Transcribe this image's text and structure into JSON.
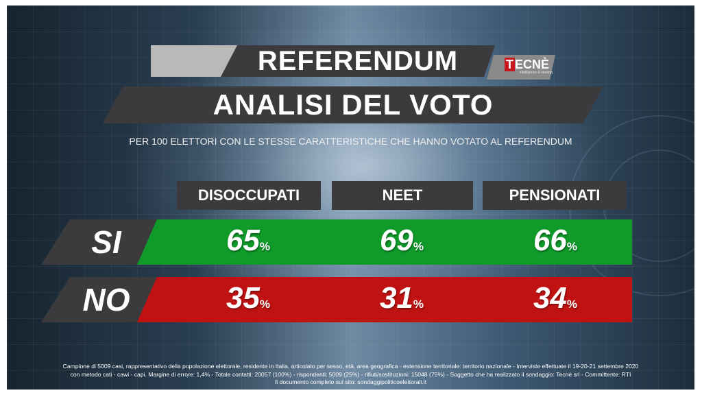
{
  "title_line1": "REFERENDUM",
  "title_line2": "ANALISI DEL VOTO",
  "logo": {
    "text": "TECNÈ",
    "tagline": "intelligence & strategy"
  },
  "subtitle": "PER 100 ELETTORI CON LE STESSE CARATTERISTICHE CHE HANNO VOTATO AL REFERENDUM",
  "colors": {
    "si": "#0f9a2a",
    "no": "#c01212",
    "slab": "#3b3b3d"
  },
  "chart_data": {
    "type": "table",
    "categories": [
      "DISOCCUPATI",
      "NEET",
      "PENSIONATI"
    ],
    "series": [
      {
        "name": "SI",
        "values": [
          65,
          69,
          66
        ]
      },
      {
        "name": "NO",
        "values": [
          35,
          31,
          34
        ]
      }
    ],
    "unit": "%"
  },
  "footnote": [
    "Campione di 5009 casi, rappresentativo della popolazione elettorale, residente in Italia, articolato per sesso, età, area geografica - estensione territoriale: territorio nazionale - Interviste effettuate il 19-20-21 settembre 2020",
    "con metodo cati - cawi - capi. Margine di errore: 1,4% - Totale contatti: 20057 (100%) - rispondenti: 5009 (25%) - rifiuti/sostituzioni: 15048 (75%) - Soggetto che ha realizzato il sondaggio: Tecnè srl - Committente: RTI",
    "Il documento completo sul sito: sondaggipoliticoelettorali.it"
  ]
}
